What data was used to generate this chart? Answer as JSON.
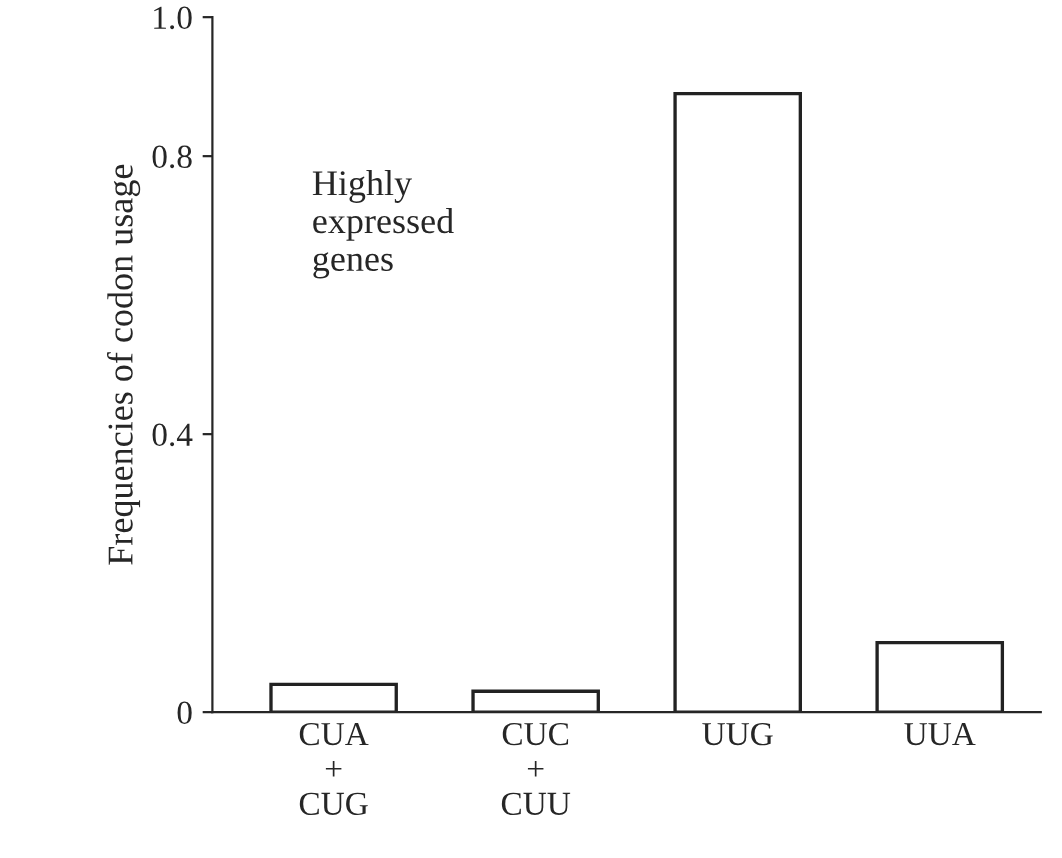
{
  "chart_data": {
    "type": "bar",
    "ylabel": "Frequencies of codon usage",
    "categories": [
      "CUA\n+\nCUG",
      "CUC\n+\nCUU",
      "UUG",
      "UUA"
    ],
    "values": [
      0.04,
      0.03,
      0.89,
      0.1
    ],
    "color": "#ffffff",
    "ylim": [
      0,
      1.0
    ],
    "yticks": [
      0,
      {
        "value": 0.4,
        "label": "0.4"
      },
      {
        "value": 0.8,
        "label": "0.8"
      },
      {
        "value": 1.0,
        "label": "1.0"
      }
    ],
    "grid": false,
    "annotations": [
      "Highly\nexpressed\ngenes"
    ]
  }
}
